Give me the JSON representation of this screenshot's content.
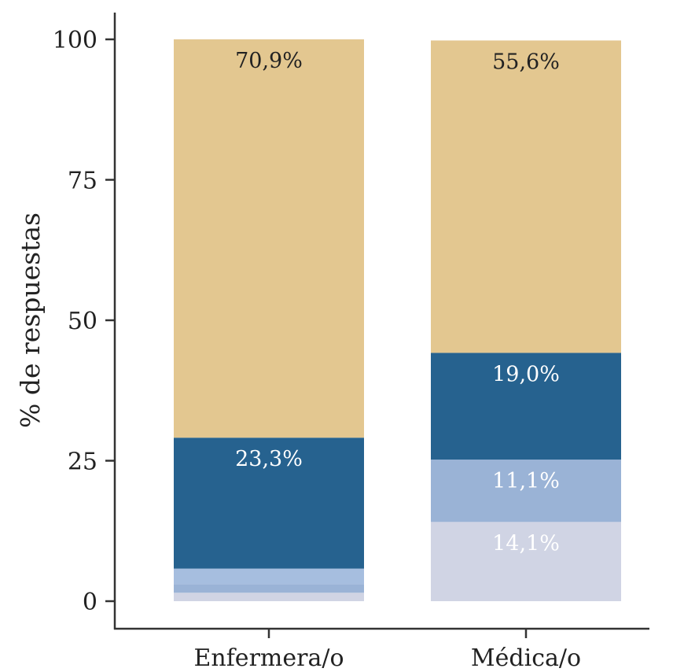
{
  "chart_data": {
    "type": "bar",
    "stacked": true,
    "categories": [
      "Enfermera/o",
      "Médica/o"
    ],
    "series": [
      {
        "values": [
          1.5,
          14.1
        ],
        "color": "#d0d4e4",
        "label_color": "#ffffff"
      },
      {
        "values": [
          1.5,
          11.1
        ],
        "color": "#9ab3d6",
        "label_color": "#ffffff"
      },
      {
        "values": [
          2.8,
          0.0
        ],
        "color": "#a6bedf",
        "label_color": "#ffffff"
      },
      {
        "values": [
          23.3,
          19.0
        ],
        "color": "#26628f",
        "label_color": "#ffffff"
      },
      {
        "values": [
          70.9,
          55.6
        ],
        "color": "#e3c790",
        "label_color": "#222222"
      }
    ],
    "labels": [
      [
        "",
        "14,1%"
      ],
      [
        "",
        "11,1%"
      ],
      [
        "",
        ""
      ],
      [
        "23,3%",
        "19,0%"
      ],
      [
        "70,9%",
        "55,6%"
      ]
    ],
    "ylabel": "% de respuestas",
    "xlabel": "",
    "ylim": [
      0,
      100
    ],
    "yticks": [
      "0",
      "25",
      "50",
      "75",
      "100"
    ],
    "ytick_values": [
      0,
      25,
      50,
      75,
      100
    ]
  }
}
